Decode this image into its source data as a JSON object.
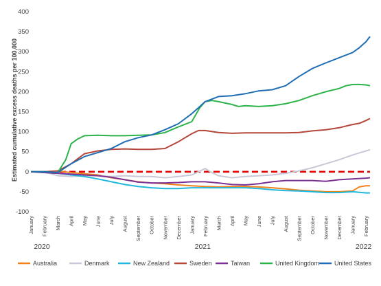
{
  "chart_data": {
    "type": "line",
    "ylabel": "Estimated cumulative excess deaths per 100,000",
    "ylim": [
      -100,
      400
    ],
    "yticks": [
      -100,
      -50,
      0,
      50,
      100,
      150,
      200,
      250,
      300,
      350,
      400
    ],
    "grid": false,
    "legend_position": "bottom",
    "months": [
      "January",
      "February",
      "March",
      "April",
      "May",
      "June",
      "July",
      "August",
      "September",
      "October",
      "November",
      "December",
      "January",
      "February",
      "March",
      "April",
      "May",
      "June",
      "July",
      "August",
      "September",
      "October",
      "November",
      "December",
      "January",
      "February"
    ],
    "years": [
      {
        "label": "2020",
        "start_index": 0
      },
      {
        "label": "2021",
        "start_index": 12
      },
      {
        "label": "2022",
        "start_index": 24
      }
    ],
    "x_unit": "month index (0 = January 2020)",
    "zero_line": {
      "color": "#e00000",
      "style": "dashed"
    },
    "series": [
      {
        "name": "Australia",
        "color": "#f0821e",
        "points": [
          [
            0,
            0
          ],
          [
            1,
            0
          ],
          [
            2,
            2
          ],
          [
            3,
            -2
          ],
          [
            4,
            -5
          ],
          [
            5,
            -8
          ],
          [
            6,
            -15
          ],
          [
            7,
            -20
          ],
          [
            8,
            -25
          ],
          [
            9,
            -28
          ],
          [
            10,
            -30
          ],
          [
            11,
            -33
          ],
          [
            12,
            -35
          ],
          [
            13,
            -37
          ],
          [
            14,
            -38
          ],
          [
            15,
            -37
          ],
          [
            16,
            -37
          ],
          [
            17,
            -38
          ],
          [
            18,
            -40
          ],
          [
            19,
            -43
          ],
          [
            20,
            -46
          ],
          [
            21,
            -48
          ],
          [
            22,
            -50
          ],
          [
            23,
            -50
          ],
          [
            24,
            -48
          ],
          [
            24.5,
            -38
          ],
          [
            25,
            -35
          ],
          [
            25.3,
            -35
          ]
        ]
      },
      {
        "name": "Denmark",
        "color": "#c8c8d6",
        "points": [
          [
            0,
            0
          ],
          [
            1,
            0
          ],
          [
            2,
            -10
          ],
          [
            3,
            -12
          ],
          [
            4,
            -10
          ],
          [
            5,
            -10
          ],
          [
            6,
            -12
          ],
          [
            7,
            -10
          ],
          [
            8,
            -12
          ],
          [
            9,
            -12
          ],
          [
            10,
            -15
          ],
          [
            11,
            -12
          ],
          [
            12,
            -8
          ],
          [
            12.5,
            0
          ],
          [
            13,
            8
          ],
          [
            13.5,
            -2
          ],
          [
            14,
            -10
          ],
          [
            15,
            -15
          ],
          [
            16,
            -12
          ],
          [
            17,
            -10
          ],
          [
            18,
            -8
          ],
          [
            19,
            -4
          ],
          [
            20,
            2
          ],
          [
            21,
            10
          ],
          [
            22,
            20
          ],
          [
            23,
            30
          ],
          [
            24,
            42
          ],
          [
            24.5,
            47
          ],
          [
            25,
            52
          ],
          [
            25.3,
            55
          ]
        ]
      },
      {
        "name": "New Zealand",
        "color": "#1fb8dc",
        "points": [
          [
            0,
            0
          ],
          [
            1,
            -2
          ],
          [
            2,
            -4
          ],
          [
            3,
            -8
          ],
          [
            4,
            -12
          ],
          [
            5,
            -18
          ],
          [
            6,
            -25
          ],
          [
            7,
            -32
          ],
          [
            8,
            -37
          ],
          [
            9,
            -40
          ],
          [
            10,
            -42
          ],
          [
            11,
            -42
          ],
          [
            12,
            -40
          ],
          [
            13,
            -40
          ],
          [
            14,
            -40
          ],
          [
            15,
            -40
          ],
          [
            16,
            -40
          ],
          [
            17,
            -42
          ],
          [
            18,
            -45
          ],
          [
            19,
            -47
          ],
          [
            20,
            -48
          ],
          [
            21,
            -50
          ],
          [
            22,
            -52
          ],
          [
            23,
            -52
          ],
          [
            24,
            -50
          ],
          [
            25,
            -53
          ],
          [
            25.3,
            -53
          ]
        ]
      },
      {
        "name": "Sweden",
        "color": "#b5473a",
        "points": [
          [
            0,
            0
          ],
          [
            1,
            0
          ],
          [
            2,
            2
          ],
          [
            3,
            20
          ],
          [
            4,
            45
          ],
          [
            5,
            52
          ],
          [
            6,
            56
          ],
          [
            7,
            57
          ],
          [
            8,
            56
          ],
          [
            9,
            56
          ],
          [
            10,
            58
          ],
          [
            11,
            75
          ],
          [
            12,
            95
          ],
          [
            12.5,
            103
          ],
          [
            13,
            103
          ],
          [
            14,
            98
          ],
          [
            15,
            96
          ],
          [
            16,
            97
          ],
          [
            17,
            97
          ],
          [
            18,
            97
          ],
          [
            19,
            97
          ],
          [
            20,
            98
          ],
          [
            21,
            102
          ],
          [
            22,
            105
          ],
          [
            23,
            110
          ],
          [
            24,
            118
          ],
          [
            24.5,
            121
          ],
          [
            25,
            128
          ],
          [
            25.3,
            133
          ]
        ]
      },
      {
        "name": "Taiwan",
        "color": "#7b3294",
        "points": [
          [
            0,
            0
          ],
          [
            1,
            -2
          ],
          [
            2,
            -4
          ],
          [
            3,
            -6
          ],
          [
            4,
            -8
          ],
          [
            5,
            -10
          ],
          [
            6,
            -14
          ],
          [
            7,
            -20
          ],
          [
            8,
            -26
          ],
          [
            9,
            -28
          ],
          [
            10,
            -28
          ],
          [
            11,
            -27
          ],
          [
            12,
            -25
          ],
          [
            13,
            -25
          ],
          [
            14,
            -28
          ],
          [
            15,
            -32
          ],
          [
            16,
            -33
          ],
          [
            17,
            -30
          ],
          [
            18,
            -25
          ],
          [
            19,
            -22
          ],
          [
            20,
            -22
          ],
          [
            21,
            -22
          ],
          [
            22,
            -24
          ],
          [
            23,
            -20
          ],
          [
            24,
            -18
          ],
          [
            25,
            -16
          ],
          [
            25.3,
            -15
          ]
        ]
      },
      {
        "name": "United Kingdom",
        "color": "#2bb34a",
        "points": [
          [
            0,
            0
          ],
          [
            1,
            0
          ],
          [
            2,
            -2
          ],
          [
            2.6,
            30
          ],
          [
            3,
            70
          ],
          [
            3.5,
            82
          ],
          [
            4,
            90
          ],
          [
            5,
            91
          ],
          [
            6,
            90
          ],
          [
            7,
            90
          ],
          [
            8,
            91
          ],
          [
            9,
            92
          ],
          [
            10,
            98
          ],
          [
            11,
            112
          ],
          [
            12,
            125
          ],
          [
            12.6,
            160
          ],
          [
            13,
            175
          ],
          [
            13.5,
            178
          ],
          [
            14,
            175
          ],
          [
            15,
            168
          ],
          [
            15.5,
            163
          ],
          [
            16,
            165
          ],
          [
            17,
            163
          ],
          [
            18,
            165
          ],
          [
            19,
            170
          ],
          [
            20,
            178
          ],
          [
            21,
            190
          ],
          [
            22,
            200
          ],
          [
            23,
            208
          ],
          [
            23.5,
            215
          ],
          [
            24,
            218
          ],
          [
            24.5,
            218
          ],
          [
            25,
            217
          ],
          [
            25.3,
            215
          ]
        ]
      },
      {
        "name": "United States",
        "color": "#1f6db5",
        "points": [
          [
            0,
            0
          ],
          [
            1,
            0
          ],
          [
            2,
            -2
          ],
          [
            3,
            20
          ],
          [
            4,
            38
          ],
          [
            5,
            48
          ],
          [
            6,
            58
          ],
          [
            7,
            75
          ],
          [
            8,
            85
          ],
          [
            9,
            92
          ],
          [
            10,
            105
          ],
          [
            11,
            120
          ],
          [
            12,
            145
          ],
          [
            12.5,
            160
          ],
          [
            13,
            175
          ],
          [
            14,
            188
          ],
          [
            15,
            190
          ],
          [
            16,
            195
          ],
          [
            17,
            202
          ],
          [
            18,
            205
          ],
          [
            19,
            215
          ],
          [
            20,
            238
          ],
          [
            21,
            258
          ],
          [
            22,
            272
          ],
          [
            23,
            285
          ],
          [
            24,
            298
          ],
          [
            24.5,
            310
          ],
          [
            25,
            325
          ],
          [
            25.3,
            338
          ]
        ]
      }
    ]
  }
}
